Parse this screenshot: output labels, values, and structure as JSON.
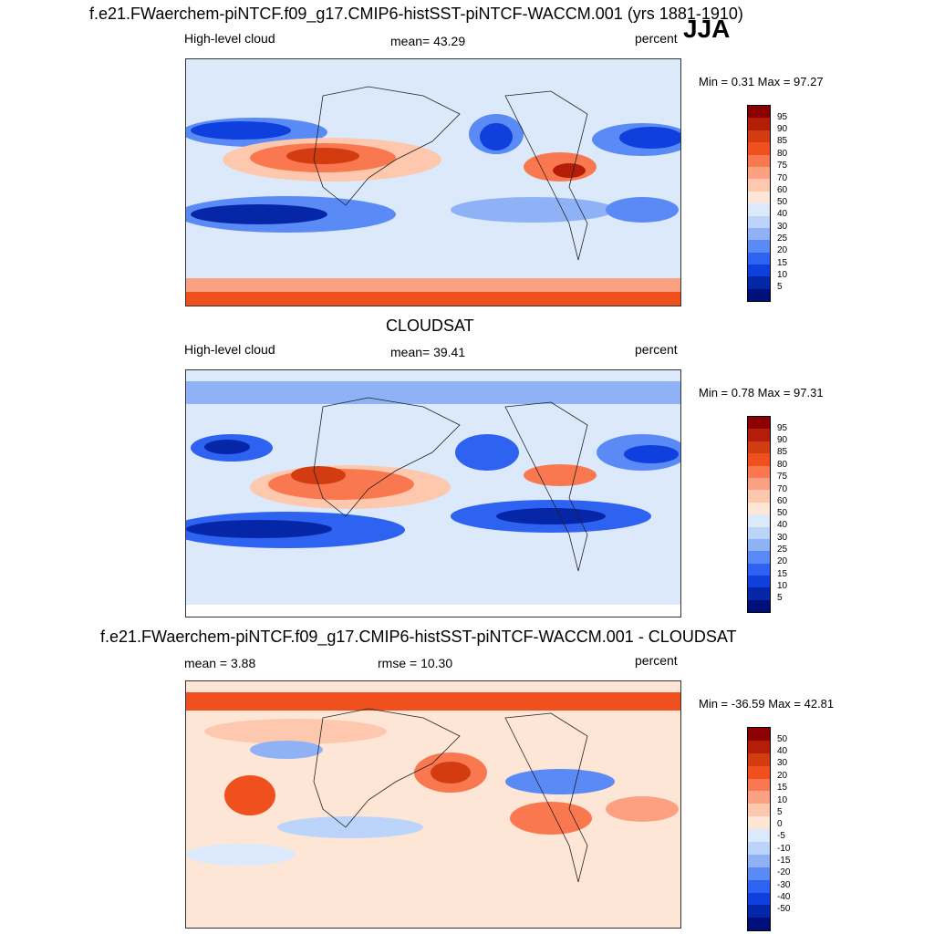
{
  "season": "JJA",
  "panels": [
    {
      "title": "f.e21.FWaerchem-piNTCF.f09_g17.CMIP6-histSST-piNTCF-WACCM.001 (yrs 1881-1910)",
      "left": "High-level cloud",
      "center": "mean=  43.29",
      "right": "percent",
      "minmax": "Min =   0.31 Max =  97.27",
      "colorbar_labels": [
        "95",
        "90",
        "85",
        "80",
        "75",
        "70",
        "60",
        "50",
        "40",
        "30",
        "25",
        "20",
        "15",
        "10",
        "5"
      ]
    },
    {
      "title": "CLOUDSAT",
      "left": "High-level cloud",
      "center": "mean=  39.41",
      "right": "percent",
      "minmax": "Min =   0.78 Max =  97.31",
      "colorbar_labels": [
        "95",
        "90",
        "85",
        "80",
        "75",
        "70",
        "60",
        "50",
        "40",
        "30",
        "25",
        "20",
        "15",
        "10",
        "5"
      ]
    },
    {
      "title": "f.e21.FWaerchem-piNTCF.f09_g17.CMIP6-histSST-piNTCF-WACCM.001 - CLOUDSAT",
      "left": "mean =   3.88",
      "center": "rmse =  10.30",
      "right": "percent",
      "minmax": "Min = -36.59 Max =  42.81",
      "colorbar_labels": [
        "50",
        "40",
        "30",
        "20",
        "15",
        "10",
        "5",
        "0",
        "-5",
        "-10",
        "-15",
        "-20",
        "-30",
        "-40",
        "-50"
      ]
    }
  ],
  "colors": {
    "abs_scale": [
      "#8b0000",
      "#b41e08",
      "#d23c10",
      "#f0501e",
      "#fa7850",
      "#fca082",
      "#fdc8ae",
      "#fee6d6",
      "#dce9fb",
      "#bcd3fa",
      "#8fb2f7",
      "#5a8af5",
      "#2e62f0",
      "#0f3fdc",
      "#0626a8",
      "#00107a"
    ],
    "diff_scale": [
      "#8b0000",
      "#b41e08",
      "#d23c10",
      "#f0501e",
      "#fa7850",
      "#fca082",
      "#fdc8ae",
      "#fee6d6",
      "#f2f5fc",
      "#dce9fb",
      "#bcd3fa",
      "#8fb2f7",
      "#5a8af5",
      "#2e62f0",
      "#0f3fdc",
      "#0626a8",
      "#00107a"
    ]
  }
}
